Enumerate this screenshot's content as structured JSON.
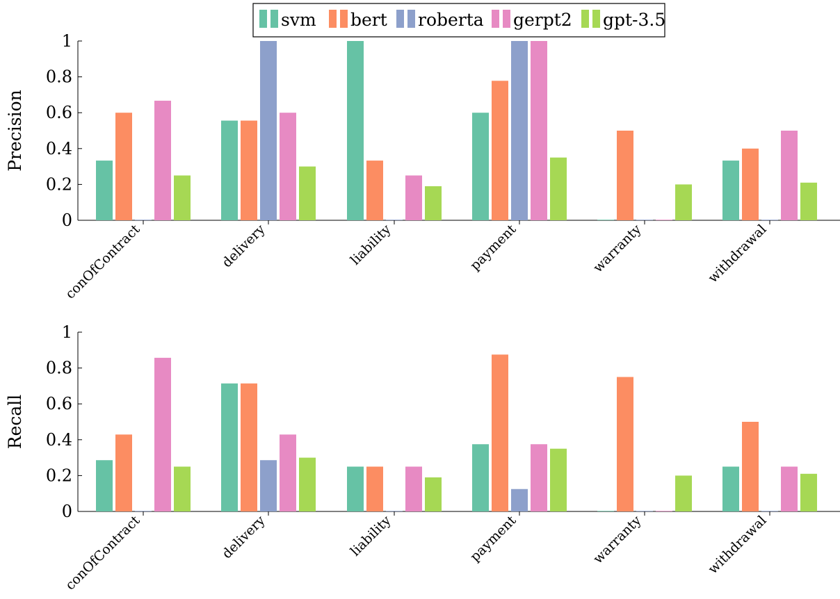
{
  "chart_data": [
    {
      "type": "bar",
      "ylabel": "Precision",
      "ylim": [
        0,
        1
      ],
      "yticks": [
        "0",
        "0.2",
        "0.4",
        "0.6",
        "0.8",
        "1"
      ],
      "categories": [
        "conOfContract",
        "delivery",
        "liability",
        "payment",
        "warranty",
        "withdrawal"
      ],
      "series": [
        {
          "name": "svm",
          "color": "#66c2a5",
          "values": [
            0.333,
            0.556,
            1.0,
            0.6,
            0.0,
            0.333
          ]
        },
        {
          "name": "bert",
          "color": "#fc8d62",
          "values": [
            0.6,
            0.556,
            0.333,
            0.778,
            0.5,
            0.4
          ]
        },
        {
          "name": "roberta",
          "color": "#8da0cb",
          "values": [
            0.0,
            1.0,
            0.0,
            1.0,
            0.0,
            0.0
          ]
        },
        {
          "name": "gerpt2",
          "color": "#e78ac3",
          "values": [
            0.667,
            0.6,
            0.25,
            1.0,
            0.0,
            0.5
          ]
        },
        {
          "name": "gpt-3.5",
          "color": "#a6d854",
          "values": [
            0.25,
            0.3,
            0.19,
            0.35,
            0.2,
            0.21
          ]
        }
      ],
      "legend": "top-center",
      "grid": false
    },
    {
      "type": "bar",
      "ylabel": "Recall",
      "ylim": [
        0,
        1
      ],
      "yticks": [
        "0",
        "0.2",
        "0.4",
        "0.6",
        "0.8",
        "1"
      ],
      "categories": [
        "conOfContract",
        "delivery",
        "liability",
        "payment",
        "warranty",
        "withdrawal"
      ],
      "series": [
        {
          "name": "svm",
          "color": "#66c2a5",
          "values": [
            0.286,
            0.714,
            0.25,
            0.375,
            0.0,
            0.25
          ]
        },
        {
          "name": "bert",
          "color": "#fc8d62",
          "values": [
            0.429,
            0.714,
            0.25,
            0.875,
            0.75,
            0.5
          ]
        },
        {
          "name": "roberta",
          "color": "#8da0cb",
          "values": [
            0.0,
            0.286,
            0.0,
            0.125,
            0.0,
            0.0
          ]
        },
        {
          "name": "gerpt2",
          "color": "#e78ac3",
          "values": [
            0.857,
            0.429,
            0.25,
            0.375,
            0.0,
            0.25
          ]
        },
        {
          "name": "gpt-3.5",
          "color": "#a6d854",
          "values": [
            0.25,
            0.3,
            0.19,
            0.35,
            0.2,
            0.21
          ]
        }
      ],
      "grid": false
    }
  ]
}
